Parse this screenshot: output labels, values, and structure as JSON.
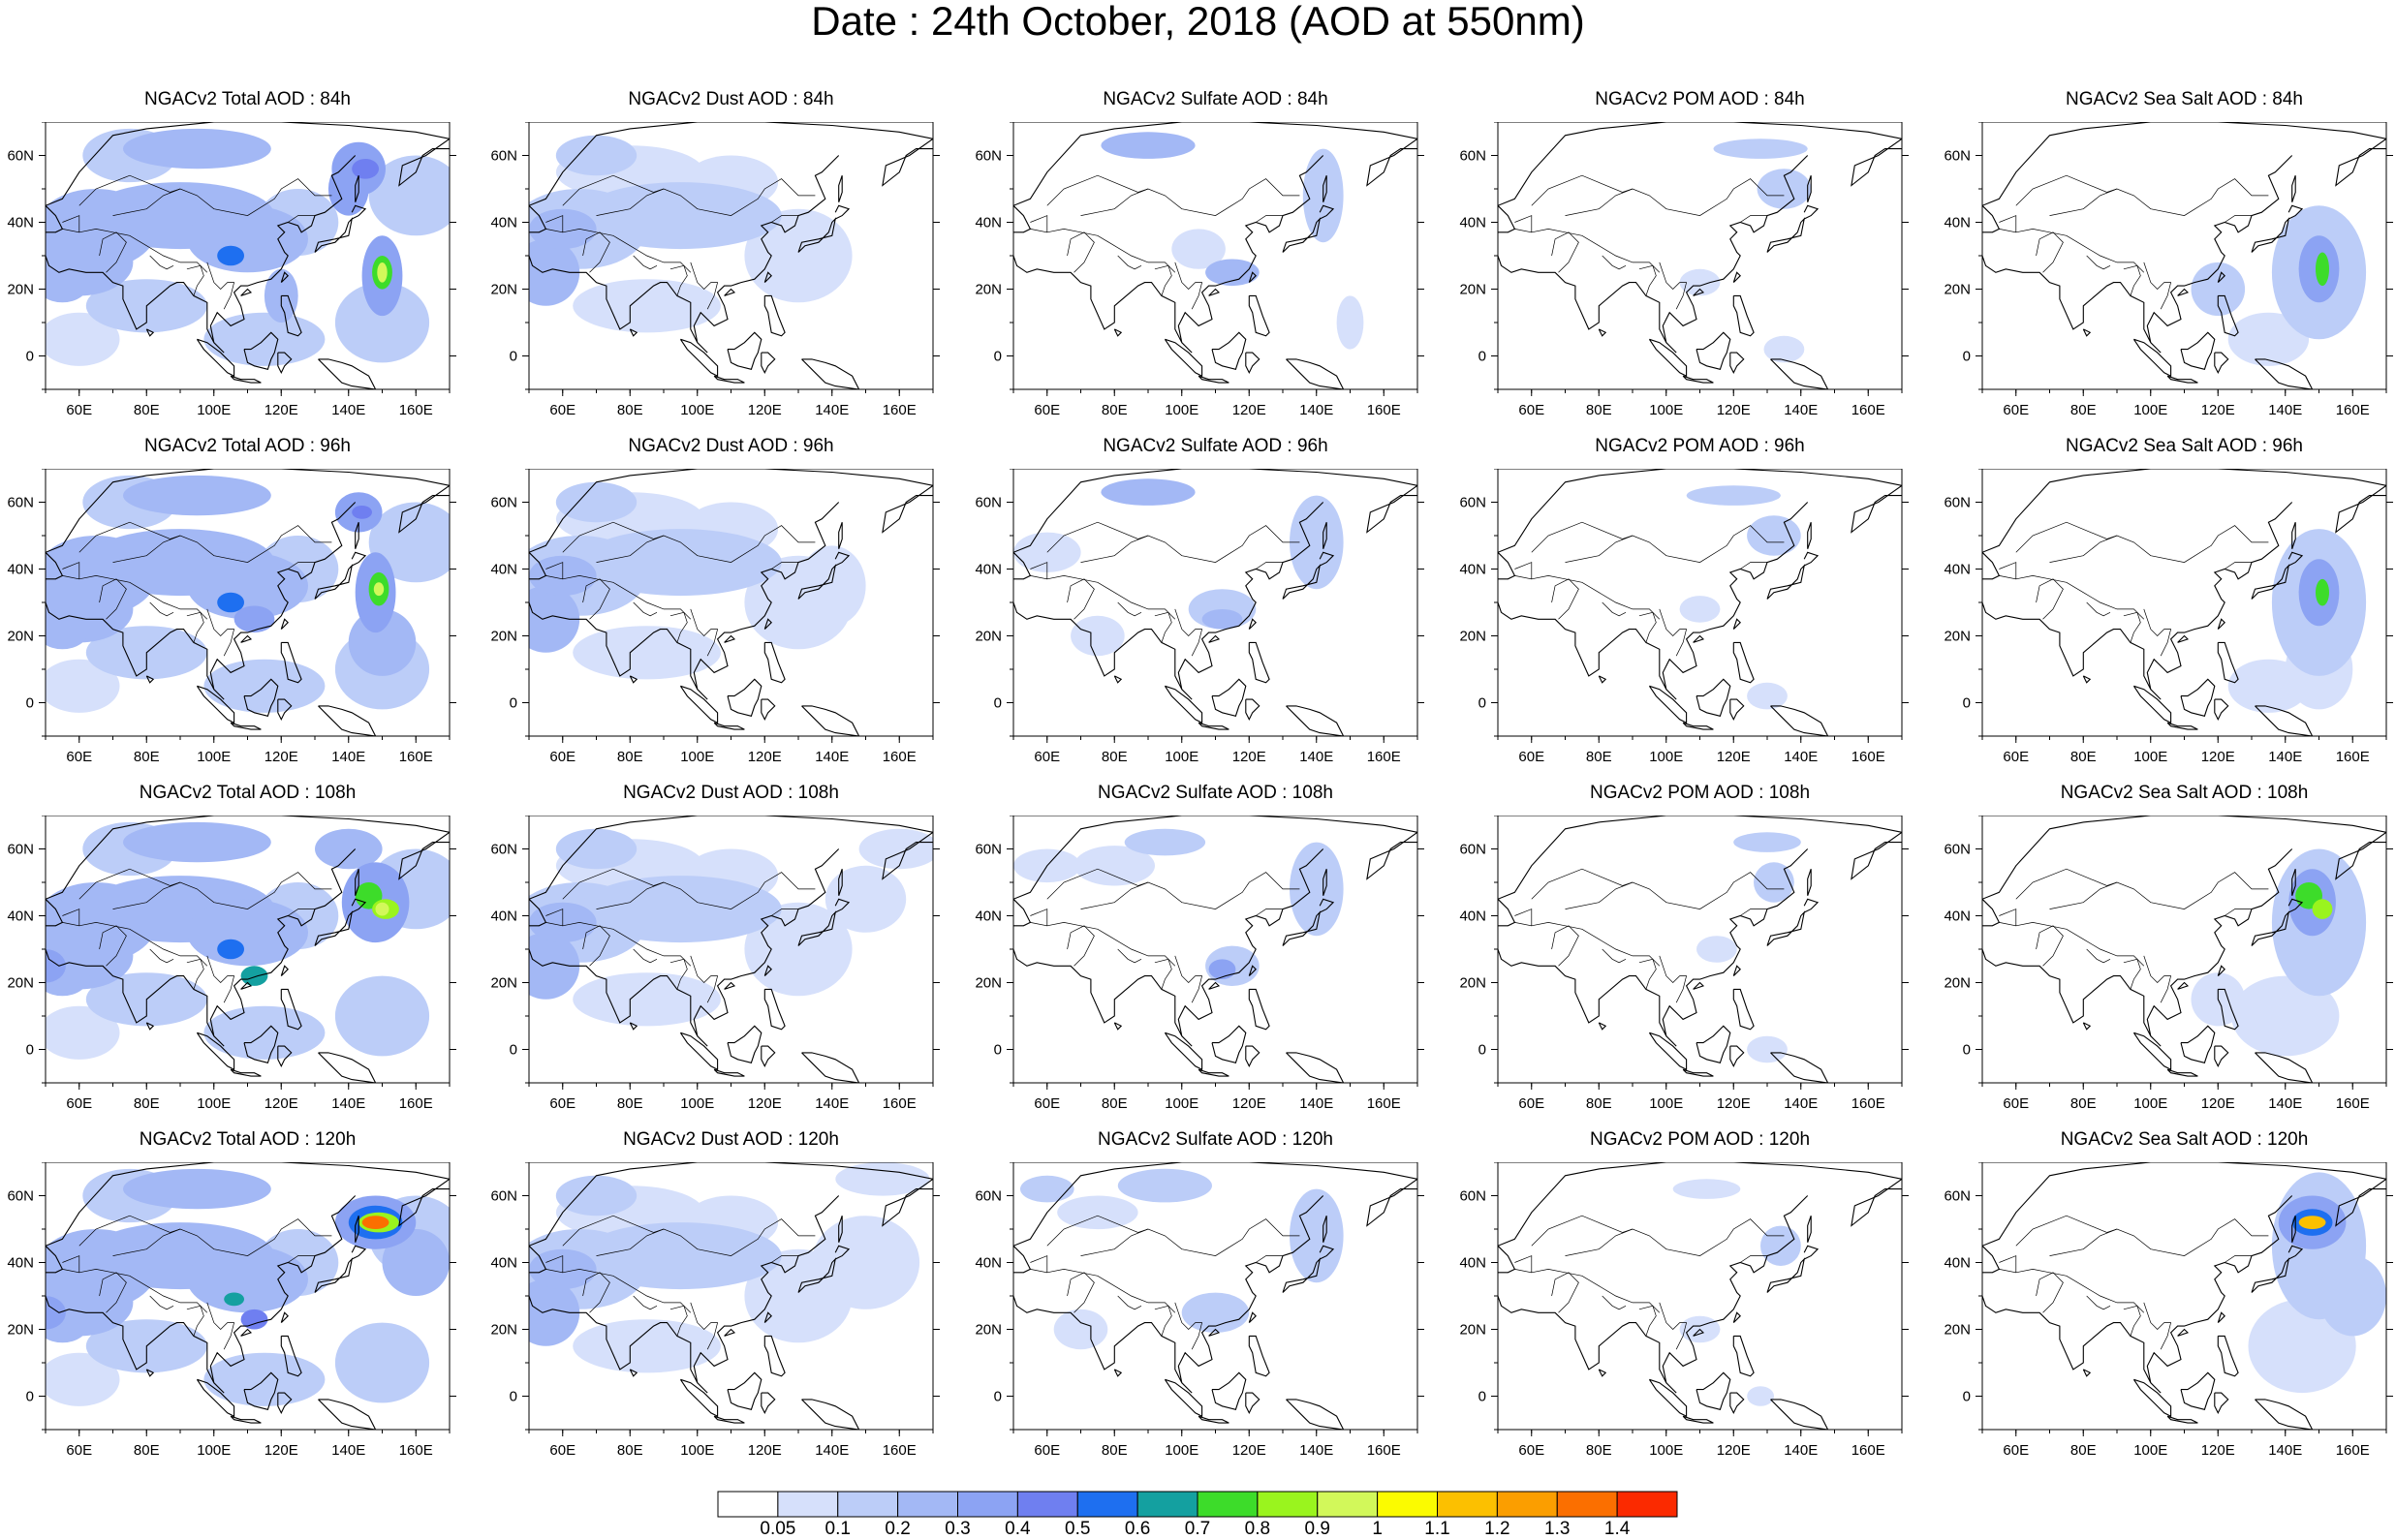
{
  "title": "Date : 24th October, 2018 (AOD at 550nm)",
  "panels": [
    {
      "title": "NGACv2 Total AOD : 84h",
      "species": "total",
      "hour": "84h"
    },
    {
      "title": "NGACv2 Dust AOD : 84h",
      "species": "dust",
      "hour": "84h"
    },
    {
      "title": "NGACv2 Sulfate AOD : 84h",
      "species": "sulfate",
      "hour": "84h"
    },
    {
      "title": "NGACv2 POM AOD : 84h",
      "species": "pom",
      "hour": "84h"
    },
    {
      "title": "NGACv2 Sea Salt AOD : 84h",
      "species": "seasalt",
      "hour": "84h"
    },
    {
      "title": "NGACv2 Total AOD : 96h",
      "species": "total",
      "hour": "96h"
    },
    {
      "title": "NGACv2 Dust AOD : 96h",
      "species": "dust",
      "hour": "96h"
    },
    {
      "title": "NGACv2 Sulfate AOD : 96h",
      "species": "sulfate",
      "hour": "96h"
    },
    {
      "title": "NGACv2 POM AOD : 96h",
      "species": "pom",
      "hour": "96h"
    },
    {
      "title": "NGACv2 Sea Salt AOD : 96h",
      "species": "seasalt",
      "hour": "96h"
    },
    {
      "title": "NGACv2 Total AOD : 108h",
      "species": "total",
      "hour": "108h"
    },
    {
      "title": "NGACv2 Dust AOD : 108h",
      "species": "dust",
      "hour": "108h"
    },
    {
      "title": "NGACv2 Sulfate AOD : 108h",
      "species": "sulfate",
      "hour": "108h"
    },
    {
      "title": "NGACv2 POM AOD : 108h",
      "species": "pom",
      "hour": "108h"
    },
    {
      "title": "NGACv2 Sea Salt AOD : 108h",
      "species": "seasalt",
      "hour": "108h"
    },
    {
      "title": "NGACv2 Total AOD : 120h",
      "species": "total",
      "hour": "120h"
    },
    {
      "title": "NGACv2 Dust AOD : 120h",
      "species": "dust",
      "hour": "120h"
    },
    {
      "title": "NGACv2 Sulfate AOD : 120h",
      "species": "sulfate",
      "hour": "120h"
    },
    {
      "title": "NGACv2 POM AOD : 120h",
      "species": "pom",
      "hour": "120h"
    },
    {
      "title": "NGACv2 Sea Salt  AOD : 120h",
      "species": "seasalt",
      "hour": "120h"
    }
  ],
  "axes": {
    "lon_labels": [
      "60E",
      "80E",
      "100E",
      "120E",
      "140E",
      "160E"
    ],
    "lat_labels": [
      "60N",
      "40N",
      "20N",
      "0"
    ],
    "lon_range": [
      50,
      170
    ],
    "lat_range": [
      -10,
      70
    ]
  },
  "colorbar": {
    "labels": [
      "0.05",
      "0.1",
      "0.2",
      "0.3",
      "0.4",
      "0.5",
      "0.6",
      "0.7",
      "0.8",
      "0.9",
      "1",
      "1.1",
      "1.2",
      "1.3",
      "1.4"
    ],
    "colors": [
      "#ffffff",
      "#d6e0fb",
      "#bccdf8",
      "#a3b8f5",
      "#8ca3f3",
      "#6f7ff0",
      "#1e6ff0",
      "#14a0a0",
      "#3ddc2a",
      "#9af41e",
      "#d2f85a",
      "#fbfb00",
      "#fcc000",
      "#fb9e00",
      "#fb6f00",
      "#fb2a00"
    ]
  }
}
